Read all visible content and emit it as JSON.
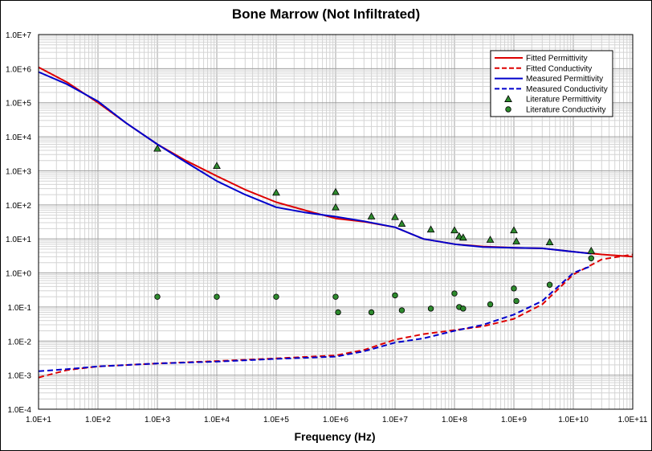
{
  "chart_data": {
    "type": "scatter",
    "title": "Bone Marrow (Not Infiltrated)",
    "xlabel": "Frequency (Hz)",
    "ylabel": "",
    "x_scale": "log",
    "y_scale": "log",
    "xlim": [
      10,
      100000000000
    ],
    "ylim": [
      0.0001,
      10000000
    ],
    "x_tick_labels": [
      "1.0E+1",
      "1.0E+2",
      "1.0E+3",
      "1.0E+4",
      "1.0E+5",
      "1.0E+6",
      "1.0E+7",
      "1.0E+8",
      "1.0E+9",
      "1.0E+10",
      "1.0E+11"
    ],
    "y_tick_labels": [
      "1.0E-4",
      "1.0E-3",
      "1.0E-2",
      "1.0E-1",
      "1.0E+0",
      "1.0E+1",
      "1.0E+2",
      "1.0E+3",
      "1.0E+4",
      "1.0E+5",
      "1.0E+6",
      "1.0E+7"
    ],
    "grid": true,
    "legend_position": "top-right",
    "series": [
      {
        "name": "Fitted Permittivity",
        "kind": "line",
        "color": "#dd0000",
        "dash": "solid",
        "points": [
          [
            10,
            1100000
          ],
          [
            30,
            400000
          ],
          [
            100,
            100000
          ],
          [
            300,
            25000
          ],
          [
            1000,
            6000
          ],
          [
            3000,
            2000
          ],
          [
            10000,
            700
          ],
          [
            30000,
            280
          ],
          [
            100000,
            120
          ],
          [
            300000,
            70
          ],
          [
            1000000,
            40
          ],
          [
            3000000,
            32
          ],
          [
            10000000,
            22
          ],
          [
            30000000,
            10
          ],
          [
            100000000,
            7
          ],
          [
            300000000,
            6
          ],
          [
            1000000000,
            5.5
          ],
          [
            3000000000,
            5.3
          ],
          [
            10000000000,
            4.2
          ],
          [
            30000000000,
            3.5
          ],
          [
            100000000000,
            3
          ]
        ]
      },
      {
        "name": "Fitted Conductivity",
        "kind": "line",
        "color": "#dd0000",
        "dash": "dashed",
        "points": [
          [
            10,
            0.00085
          ],
          [
            30,
            0.0014
          ],
          [
            100,
            0.0018
          ],
          [
            1000,
            0.0022
          ],
          [
            10000,
            0.0026
          ],
          [
            100000,
            0.0031
          ],
          [
            1000000,
            0.0038
          ],
          [
            3000000,
            0.0055
          ],
          [
            10000000,
            0.011
          ],
          [
            30000000,
            0.016
          ],
          [
            100000000,
            0.021
          ],
          [
            300000000,
            0.027
          ],
          [
            1000000000,
            0.045
          ],
          [
            3000000000,
            0.12
          ],
          [
            10000000000,
            0.9
          ],
          [
            30000000000,
            2.5
          ],
          [
            100000000000,
            3.5
          ]
        ]
      },
      {
        "name": "Measured Permittivity",
        "kind": "line",
        "color": "#0000cc",
        "dash": "solid",
        "points": [
          [
            10,
            800000
          ],
          [
            30,
            350000
          ],
          [
            100,
            110000
          ],
          [
            300,
            25000
          ],
          [
            1000,
            6000
          ],
          [
            3000,
            1800
          ],
          [
            10000,
            500
          ],
          [
            30000,
            200
          ],
          [
            100000,
            85
          ],
          [
            300000,
            60
          ],
          [
            1000000,
            45
          ],
          [
            3000000,
            33
          ],
          [
            10000000,
            22
          ],
          [
            30000000,
            10
          ],
          [
            100000000,
            7
          ],
          [
            300000000,
            5.8
          ],
          [
            1000000000,
            5.5
          ],
          [
            3000000000,
            5.3
          ],
          [
            10000000000,
            4.2
          ],
          [
            20000000000,
            3.7
          ]
        ]
      },
      {
        "name": "Measured Conductivity",
        "kind": "line",
        "color": "#0000cc",
        "dash": "dashed",
        "points": [
          [
            10,
            0.0013
          ],
          [
            30,
            0.0015
          ],
          [
            100,
            0.0018
          ],
          [
            1000,
            0.0022
          ],
          [
            10000,
            0.0025
          ],
          [
            100000,
            0.003
          ],
          [
            1000000,
            0.0035
          ],
          [
            3000000,
            0.005
          ],
          [
            10000000,
            0.009
          ],
          [
            30000000,
            0.012
          ],
          [
            100000000,
            0.02
          ],
          [
            300000000,
            0.03
          ],
          [
            1000000000,
            0.06
          ],
          [
            3000000000,
            0.15
          ],
          [
            10000000000,
            1.0
          ],
          [
            20000000000,
            1.6
          ]
        ]
      },
      {
        "name": "Literature Permittivity",
        "kind": "triangle",
        "color": "#2e8b2e",
        "points": [
          [
            1000,
            4500
          ],
          [
            10000,
            1400
          ],
          [
            100000,
            230
          ],
          [
            1000000,
            240
          ],
          [
            1000000,
            85
          ],
          [
            4000000,
            46
          ],
          [
            10000000,
            44
          ],
          [
            13000000,
            28
          ],
          [
            40000000,
            19
          ],
          [
            100000000,
            18
          ],
          [
            120000000,
            12
          ],
          [
            140000000,
            11
          ],
          [
            400000000,
            9.5
          ],
          [
            1000000000,
            18
          ],
          [
            1100000000,
            8.5
          ],
          [
            4000000000,
            8
          ],
          [
            20000000000,
            4.5
          ]
        ]
      },
      {
        "name": "Literature Conductivity",
        "kind": "circle",
        "color": "#2e8b2e",
        "points": [
          [
            1000,
            0.2
          ],
          [
            10000,
            0.2
          ],
          [
            100000,
            0.2
          ],
          [
            1000000,
            0.2
          ],
          [
            1100000,
            0.07
          ],
          [
            4000000,
            0.07
          ],
          [
            10000000,
            0.22
          ],
          [
            13000000,
            0.08
          ],
          [
            40000000,
            0.09
          ],
          [
            100000000,
            0.25
          ],
          [
            120000000,
            0.1
          ],
          [
            140000000,
            0.09
          ],
          [
            400000000,
            0.12
          ],
          [
            1000000000,
            0.35
          ],
          [
            1100000000,
            0.15
          ],
          [
            4000000000,
            0.45
          ],
          [
            20000000000,
            2.7
          ]
        ]
      }
    ]
  }
}
